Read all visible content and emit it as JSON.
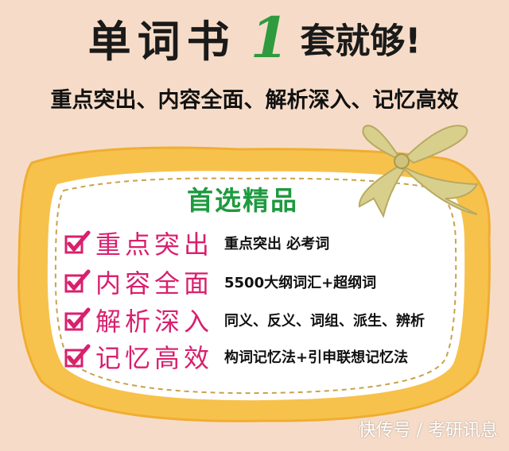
{
  "title": {
    "main": "单词书",
    "number": "1",
    "rest": "套就够!"
  },
  "subtitle": "重点突出、内容全面、解析深入、记忆高效",
  "box": {
    "title": "首选精品",
    "features": [
      {
        "head": "重点突出",
        "desc": "重点突出 必考词"
      },
      {
        "head": "内容全面",
        "desc": "5500大纲词汇+超纲词"
      },
      {
        "head": "解析深入",
        "desc": "同义、反义、词组、派生、辨析"
      },
      {
        "head": "记忆高效",
        "desc": "构词记忆法+引申联想记忆法"
      }
    ]
  },
  "watermark": "快传号 / 考研讯息",
  "colors": {
    "background": "#f6dcc8",
    "frame": "#f7c24b",
    "frame_border": "#f4b63a",
    "box_fill": "#ffffff",
    "dash": "#c9a24a",
    "accent_green": "#2f9a3e",
    "head_pink": "#d8206e",
    "ribbon": "#d9cf8c"
  },
  "icons": [
    "checkmark-icon",
    "ribbon-bow-icon"
  ]
}
